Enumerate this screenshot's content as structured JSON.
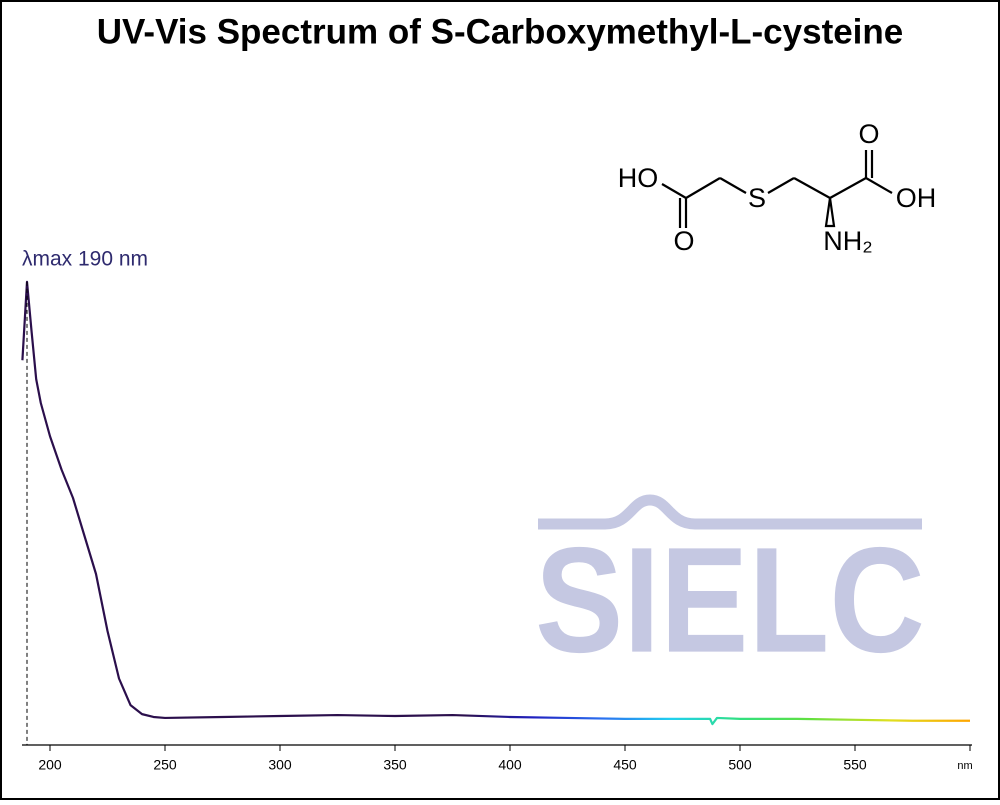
{
  "chart_data": {
    "type": "line",
    "title": "UV-Vis Spectrum of S-Carboxymethyl-L-cysteine",
    "annotation": "λmax  190 nm",
    "watermark": "SIELC",
    "structure_labels": {
      "ho": "HO",
      "o1": "O",
      "s": "S",
      "o2": "O",
      "oh": "OH",
      "nh2": "NH₂"
    },
    "x": [
      188,
      190,
      192,
      194,
      196,
      200,
      205,
      210,
      215,
      220,
      225,
      230,
      235,
      240,
      245,
      250,
      275,
      300,
      325,
      350,
      375,
      400,
      425,
      450,
      475,
      487,
      488,
      490,
      500,
      525,
      550,
      575,
      600
    ],
    "series": [
      {
        "color": "#2b0f4c",
        "values": [
          0.81,
          0.975,
          0.87,
          0.77,
          0.72,
          0.65,
          0.58,
          0.52,
          0.44,
          0.36,
          0.24,
          0.14,
          0.084,
          0.065,
          0.059,
          0.057,
          0.059,
          0.061,
          0.063,
          0.061,
          0.063,
          0.059,
          0.057,
          0.055,
          0.055,
          0.055,
          0.044,
          0.057,
          0.055,
          0.055,
          0.053,
          0.051,
          0.051
        ]
      }
    ],
    "gradient": [
      {
        "value": 380,
        "color": "#2b0f4c"
      },
      {
        "value": 410,
        "color": "#2020c0"
      },
      {
        "value": 440,
        "color": "#2a6ff0"
      },
      {
        "value": 470,
        "color": "#20d0f0"
      },
      {
        "value": 500,
        "color": "#30e080"
      },
      {
        "value": 530,
        "color": "#60e040"
      },
      {
        "value": 565,
        "color": "#e0e020"
      },
      {
        "value": 600,
        "color": "#ffa500"
      }
    ],
    "xlim": [
      188,
      600
    ],
    "ylim": [
      0,
      1
    ],
    "xticks": [
      200,
      250,
      300,
      350,
      400,
      450,
      500,
      550,
      {
        "value": 600,
        "label": "nm"
      }
    ]
  }
}
